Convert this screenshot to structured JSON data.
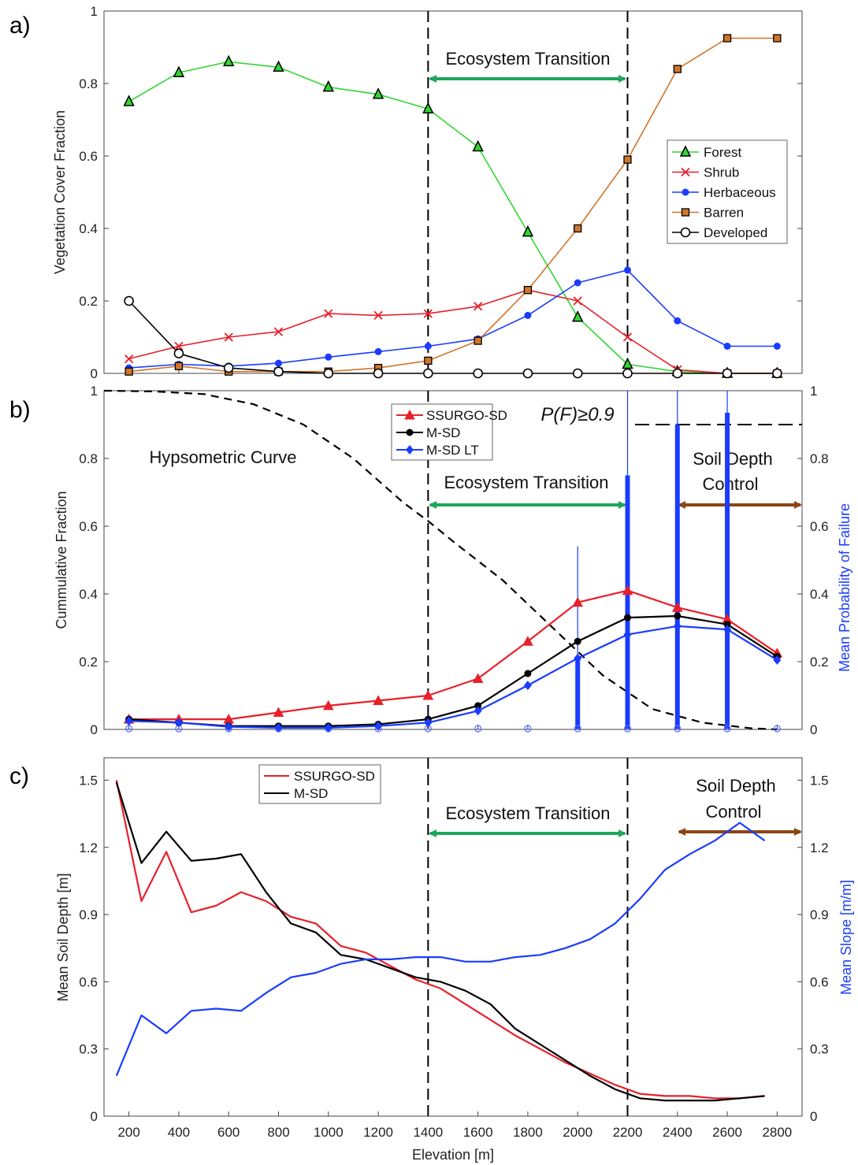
{
  "figure": {
    "xlabel": "Elevation  [m]"
  },
  "colors": {
    "forest": "#33d633",
    "shrub": "#e8202a",
    "herbaceous": "#1a3cff",
    "barren": "#d0762b",
    "developed": "#000000",
    "transition_arrow": "#1ea65a",
    "control_arrow": "#8b4513",
    "pf_bars": "#1a3cff"
  },
  "chart_data": [
    {
      "panel": "a)",
      "type": "line",
      "ylabel": "Vegetation Cover Fraction",
      "xlim": [
        100,
        2900
      ],
      "ylim": [
        0,
        1
      ],
      "xticks": [
        200,
        400,
        600,
        800,
        1000,
        1200,
        1400,
        1600,
        1800,
        2000,
        2200,
        2400,
        2600,
        2800
      ],
      "yticks": [
        0,
        0.2,
        0.4,
        0.6,
        0.8,
        1
      ],
      "ytick_labels": [
        "0",
        "0.2",
        "0.4",
        "0.6",
        "0.8",
        "1"
      ],
      "annotations": [
        {
          "text": "Ecosystem Transition"
        }
      ],
      "vlines": [
        1400,
        2200
      ],
      "legend_position": "center-right",
      "x": [
        200,
        400,
        600,
        800,
        1000,
        1200,
        1400,
        1600,
        1800,
        2000,
        2200,
        2400,
        2600,
        2800
      ],
      "series": [
        {
          "name": "Forest",
          "marker": "triangle",
          "values": [
            0.75,
            0.83,
            0.86,
            0.845,
            0.79,
            0.77,
            0.73,
            0.625,
            0.39,
            0.155,
            0.025,
            0.005,
            0.0,
            0.0
          ]
        },
        {
          "name": "Shrub",
          "marker": "x",
          "values": [
            0.04,
            0.075,
            0.1,
            0.115,
            0.165,
            0.16,
            0.165,
            0.185,
            0.23,
            0.2,
            0.1,
            0.01,
            0.0,
            0.0
          ]
        },
        {
          "name": "Herbaceous",
          "marker": "dot",
          "values": [
            0.015,
            0.025,
            0.02,
            0.028,
            0.045,
            0.06,
            0.075,
            0.095,
            0.16,
            0.25,
            0.285,
            0.145,
            0.075,
            0.075
          ]
        },
        {
          "name": "Barren",
          "marker": "square",
          "values": [
            0.005,
            0.02,
            0.005,
            0.005,
            0.005,
            0.015,
            0.035,
            0.09,
            0.23,
            0.4,
            0.59,
            0.84,
            0.925,
            0.925
          ]
        },
        {
          "name": "Developed",
          "marker": "circle",
          "values": [
            0.2,
            0.055,
            0.015,
            0.005,
            0.0,
            0.0,
            0.0,
            0.0,
            0.0,
            0.0,
            0.0,
            0.0,
            0.0,
            0.0
          ]
        }
      ]
    },
    {
      "panel": "b)",
      "type": "line",
      "ylabel": "Cummulative Fraction",
      "ylabel_right": "Mean Probability of Failure",
      "xlim": [
        100,
        2900
      ],
      "ylim": [
        0,
        1
      ],
      "ylim_right": [
        0,
        1
      ],
      "yticks": [
        0,
        0.2,
        0.4,
        0.6,
        0.8,
        1
      ],
      "ytick_labels": [
        "0",
        "0.2",
        "0.4",
        "0.6",
        "0.8",
        "1"
      ],
      "annotations": [
        {
          "text": "Hypsometric Curve"
        },
        {
          "text": "Ecosystem Transition"
        },
        {
          "text": "P(F)≥0.9"
        },
        {
          "text": "Soil Depth"
        },
        {
          "text": "Control"
        }
      ],
      "vlines": [
        1400
      ],
      "hline_right": {
        "value": 0.9,
        "x_from": 2230
      },
      "legend_position": "top-center",
      "hypsometric_curve": {
        "x": [
          100,
          300,
          500,
          700,
          900,
          1100,
          1300,
          1400,
          1500,
          1700,
          1900,
          2100,
          2300,
          2500,
          2700,
          2800
        ],
        "values": [
          1.0,
          0.998,
          0.99,
          0.96,
          0.9,
          0.8,
          0.67,
          0.615,
          0.555,
          0.44,
          0.3,
          0.16,
          0.06,
          0.02,
          0.003,
          0.0
        ]
      },
      "x": [
        200,
        400,
        600,
        800,
        1000,
        1200,
        1400,
        1600,
        1800,
        2000,
        2200,
        2400,
        2600,
        2800
      ],
      "series": [
        {
          "name": "SSURGO-SD",
          "marker": "triangle-filled",
          "values": [
            0.03,
            0.03,
            0.03,
            0.05,
            0.07,
            0.085,
            0.1,
            0.15,
            0.26,
            0.375,
            0.41,
            0.36,
            0.325,
            0.225
          ]
        },
        {
          "name": "M-SD",
          "marker": "dot",
          "values": [
            0.03,
            0.02,
            0.01,
            0.01,
            0.01,
            0.015,
            0.03,
            0.07,
            0.165,
            0.26,
            0.33,
            0.335,
            0.31,
            0.215
          ]
        },
        {
          "name": "M-SD LT",
          "marker": "diamond",
          "values": [
            0.025,
            0.02,
            0.008,
            0.005,
            0.005,
            0.01,
            0.02,
            0.055,
            0.13,
            0.21,
            0.28,
            0.305,
            0.295,
            0.205
          ]
        }
      ],
      "pf_bars": {
        "x": [
          2000,
          2200,
          2400,
          2600
        ],
        "thick": [
          0.21,
          0.75,
          0.9,
          0.935
        ],
        "thin": [
          0.54,
          1.0,
          1.0,
          1.0
        ]
      },
      "pf_zero_markers_x": [
        200,
        400,
        600,
        800,
        1000,
        1200,
        1400,
        1600,
        1800,
        2000,
        2200,
        2400,
        2600,
        2800
      ]
    },
    {
      "panel": "c)",
      "type": "line",
      "xlabel": "Elevation  [m]",
      "ylabel": "Mean Soil Depth [m]",
      "ylabel_right": "Mean Slope [m/m]",
      "xlim": [
        100,
        2900
      ],
      "ylim": [
        0,
        1.6
      ],
      "ylim_right": [
        0,
        1.6
      ],
      "xticks": [
        200,
        400,
        600,
        800,
        1000,
        1200,
        1400,
        1600,
        1800,
        2000,
        2200,
        2400,
        2600,
        2800
      ],
      "yticks": [
        0,
        0.3,
        0.6,
        0.9,
        1.2,
        1.5
      ],
      "ytick_labels": [
        "0",
        "0.3",
        "0.6",
        "0.9",
        "1.2",
        "1.5"
      ],
      "annotations": [
        {
          "text": "Ecosystem Transition"
        },
        {
          "text": "Soil Depth"
        },
        {
          "text": "Control"
        }
      ],
      "vlines": [
        1400,
        2200
      ],
      "legend_position": "top-left",
      "series": [
        {
          "name": "SSURGO-SD",
          "x": [
            150,
            250,
            350,
            450,
            550,
            650,
            750,
            850,
            950,
            1050,
            1150,
            1250,
            1350,
            1450,
            1550,
            1650,
            1750,
            1850,
            1950,
            2050,
            2150,
            2250,
            2350,
            2450,
            2550,
            2650,
            2750
          ],
          "values": [
            1.5,
            0.96,
            1.18,
            0.91,
            0.94,
            1.0,
            0.96,
            0.89,
            0.86,
            0.76,
            0.73,
            0.67,
            0.61,
            0.57,
            0.5,
            0.43,
            0.36,
            0.3,
            0.24,
            0.19,
            0.14,
            0.1,
            0.09,
            0.09,
            0.08,
            0.08,
            0.09
          ]
        },
        {
          "name": "M-SD",
          "x": [
            150,
            250,
            350,
            450,
            550,
            650,
            750,
            850,
            950,
            1050,
            1150,
            1250,
            1350,
            1450,
            1550,
            1650,
            1750,
            1850,
            1950,
            2050,
            2150,
            2250,
            2350,
            2450,
            2550,
            2650,
            2750
          ],
          "values": [
            1.49,
            1.13,
            1.27,
            1.14,
            1.15,
            1.17,
            1.0,
            0.86,
            0.82,
            0.72,
            0.7,
            0.66,
            0.62,
            0.6,
            0.56,
            0.5,
            0.39,
            0.32,
            0.25,
            0.18,
            0.12,
            0.08,
            0.07,
            0.07,
            0.07,
            0.08,
            0.09
          ]
        },
        {
          "name": "Mean Slope",
          "axis": "right",
          "x": [
            150,
            250,
            350,
            450,
            550,
            650,
            750,
            850,
            950,
            1050,
            1150,
            1250,
            1350,
            1450,
            1550,
            1650,
            1750,
            1850,
            1950,
            2050,
            2150,
            2250,
            2350,
            2450,
            2550,
            2650,
            2750
          ],
          "values": [
            0.18,
            0.45,
            0.37,
            0.47,
            0.48,
            0.47,
            0.55,
            0.62,
            0.64,
            0.68,
            0.7,
            0.7,
            0.71,
            0.71,
            0.69,
            0.69,
            0.71,
            0.72,
            0.75,
            0.79,
            0.86,
            0.97,
            1.1,
            1.17,
            1.23,
            1.31,
            1.23
          ]
        }
      ]
    }
  ]
}
